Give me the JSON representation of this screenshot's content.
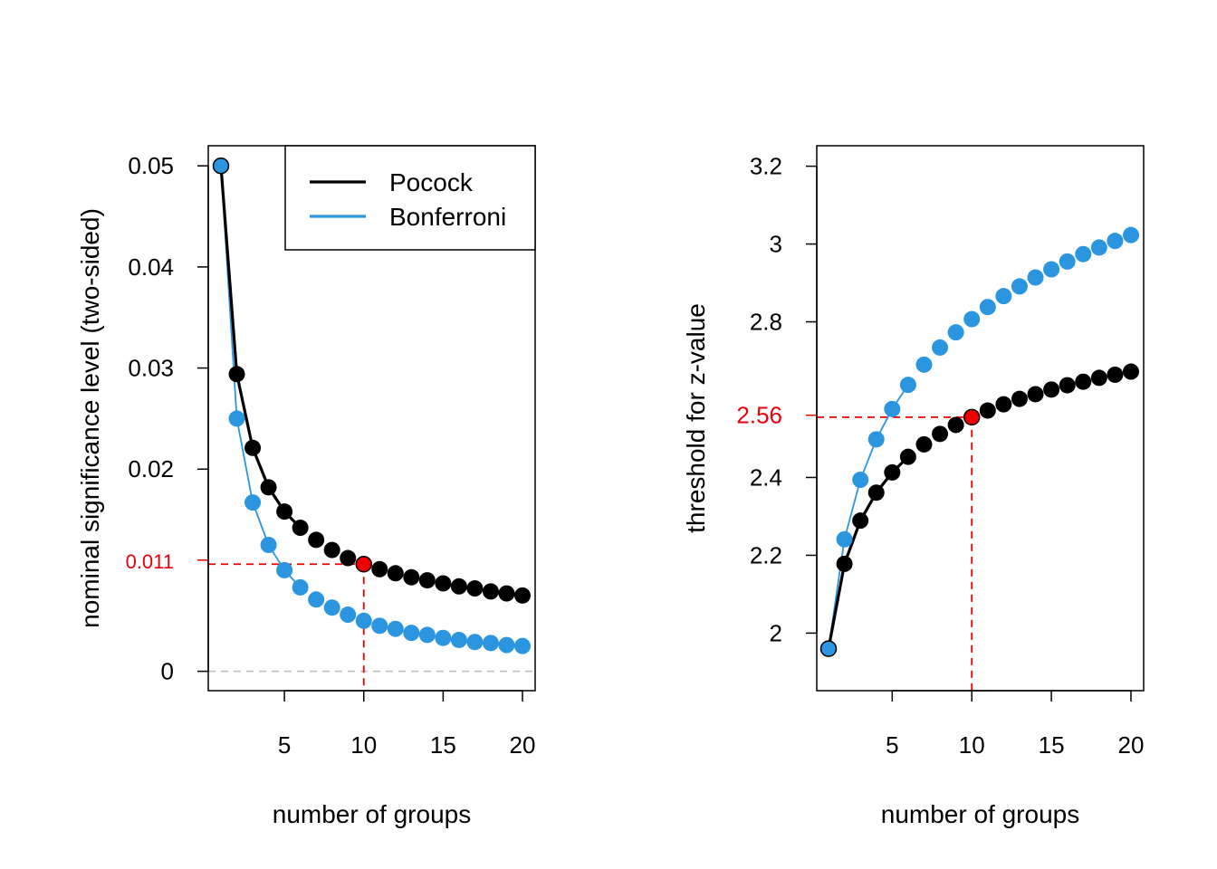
{
  "colors": {
    "pocock": "#000000",
    "bonferroni": "#2b95e0",
    "highlight": "#ee0000",
    "zero_line": "#bfbfbf"
  },
  "chart_data": [
    {
      "type": "scatter",
      "title": "",
      "xlabel": "number of groups",
      "ylabel": "nominal significance level (two-sided)",
      "xlim": [
        1,
        20
      ],
      "ylim": [
        -0.0019,
        0.052
      ],
      "xticks": [
        5,
        10,
        15,
        20
      ],
      "yticks": [
        {
          "value": 0,
          "label": "0"
        },
        {
          "value": 0.011,
          "label": "0.011",
          "highlight": true
        },
        {
          "value": 0.02,
          "label": "0.02"
        },
        {
          "value": 0.03,
          "label": "0.03"
        },
        {
          "value": 0.04,
          "label": "0.04"
        },
        {
          "value": 0.05,
          "label": "0.05"
        }
      ],
      "x": [
        1,
        2,
        3,
        4,
        5,
        6,
        7,
        8,
        9,
        10,
        11,
        12,
        13,
        14,
        15,
        16,
        17,
        18,
        19,
        20
      ],
      "series": [
        {
          "name": "Pocock",
          "key": "pocock",
          "values": [
            0.05,
            0.0294,
            0.0221,
            0.0182,
            0.0158,
            0.0142,
            0.013,
            0.012,
            0.0112,
            0.0106,
            0.0101,
            0.0097,
            0.0093,
            0.009,
            0.0087,
            0.0084,
            0.0082,
            0.0079,
            0.0077,
            0.0075
          ]
        },
        {
          "name": "Bonferroni",
          "key": "bonferroni",
          "values": [
            0.05,
            0.025,
            0.0167,
            0.0125,
            0.01,
            0.0083,
            0.0071,
            0.0063,
            0.0056,
            0.005,
            0.0045,
            0.0042,
            0.0038,
            0.0036,
            0.0033,
            0.0031,
            0.0029,
            0.0028,
            0.0026,
            0.0025
          ]
        }
      ],
      "highlight": {
        "x": 10,
        "y": 0.0106
      },
      "zero_line": 0,
      "legend": {
        "placement": "top-right",
        "entries": [
          "Pocock",
          "Bonferroni"
        ]
      }
    },
    {
      "type": "scatter",
      "title": "",
      "xlabel": "number of groups",
      "ylabel": "threshold for z-value",
      "xlim": [
        1,
        20
      ],
      "ylim": [
        1.85,
        3.25
      ],
      "xticks": [
        5,
        10,
        15,
        20
      ],
      "yticks": [
        {
          "value": 2,
          "label": "2"
        },
        {
          "value": 2.2,
          "label": "2.2"
        },
        {
          "value": 2.4,
          "label": "2.4"
        },
        {
          "value": 2.56,
          "label": "2.56",
          "highlight": true
        },
        {
          "value": 2.8,
          "label": "2.8"
        },
        {
          "value": 3,
          "label": "3"
        },
        {
          "value": 3.2,
          "label": "3.2"
        }
      ],
      "x": [
        1,
        2,
        3,
        4,
        5,
        6,
        7,
        8,
        9,
        10,
        11,
        12,
        13,
        14,
        15,
        16,
        17,
        18,
        19,
        20
      ],
      "series": [
        {
          "name": "Pocock",
          "key": "pocock",
          "values": [
            1.96,
            2.178,
            2.289,
            2.361,
            2.413,
            2.453,
            2.485,
            2.512,
            2.535,
            2.555,
            2.572,
            2.588,
            2.602,
            2.614,
            2.626,
            2.637,
            2.646,
            2.656,
            2.664,
            2.672
          ]
        },
        {
          "name": "Bonferroni",
          "key": "bonferroni",
          "values": [
            1.96,
            2.241,
            2.394,
            2.498,
            2.576,
            2.638,
            2.69,
            2.734,
            2.773,
            2.807,
            2.838,
            2.866,
            2.891,
            2.914,
            2.935,
            2.955,
            2.974,
            2.991,
            3.008,
            3.023
          ]
        }
      ],
      "highlight": {
        "x": 10,
        "y": 2.555
      }
    }
  ]
}
